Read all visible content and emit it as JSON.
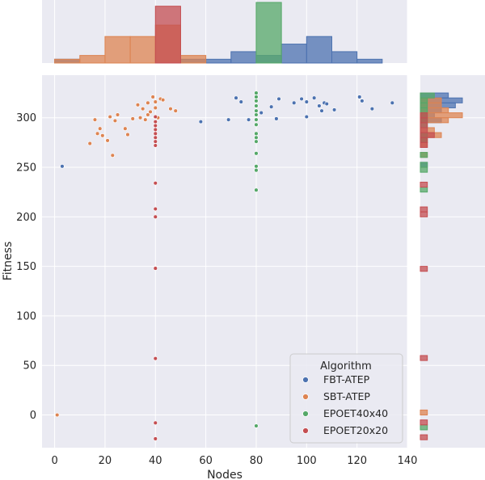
{
  "chart_data": {
    "type": "scatter",
    "title": "",
    "xlabel": "Nodes",
    "ylabel": "Fitness",
    "xlim": [
      -5,
      140
    ],
    "ylim": [
      -33,
      343
    ],
    "xticks": [
      0,
      20,
      40,
      60,
      80,
      100,
      120,
      140
    ],
    "yticks": [
      0,
      50,
      100,
      150,
      200,
      250,
      300
    ],
    "xtick_labels": [
      "0",
      "20",
      "40",
      "60",
      "80",
      "100",
      "120",
      "140"
    ],
    "ytick_labels": [
      "0",
      "50",
      "100",
      "150",
      "200",
      "250",
      "300"
    ],
    "grid": true,
    "legend": {
      "title": "Algorithm",
      "placement": "lower-right"
    },
    "series": [
      {
        "name": "FBT-ATEP",
        "color": "#4c72b0",
        "points": [
          [
            3,
            251
          ],
          [
            58,
            296
          ],
          [
            69,
            298
          ],
          [
            72,
            320
          ],
          [
            74,
            316
          ],
          [
            77,
            298
          ],
          [
            82,
            305
          ],
          [
            86,
            311
          ],
          [
            88,
            299
          ],
          [
            89,
            319
          ],
          [
            95,
            315
          ],
          [
            98,
            319
          ],
          [
            100,
            301
          ],
          [
            100,
            316
          ],
          [
            103,
            320
          ],
          [
            105,
            312
          ],
          [
            106,
            307
          ],
          [
            107,
            315
          ],
          [
            108,
            314
          ],
          [
            111,
            308
          ],
          [
            121,
            321
          ],
          [
            122,
            317
          ],
          [
            126,
            309
          ],
          [
            134,
            315
          ]
        ]
      },
      {
        "name": "SBT-ATEP",
        "color": "#dd8452",
        "points": [
          [
            1,
            0
          ],
          [
            14,
            274
          ],
          [
            16,
            298
          ],
          [
            17,
            284
          ],
          [
            18,
            289
          ],
          [
            19,
            282
          ],
          [
            21,
            277
          ],
          [
            22,
            301
          ],
          [
            23,
            262
          ],
          [
            24,
            297
          ],
          [
            25,
            303
          ],
          [
            28,
            289
          ],
          [
            29,
            283
          ],
          [
            31,
            299
          ],
          [
            33,
            313
          ],
          [
            34,
            300
          ],
          [
            35,
            309
          ],
          [
            36,
            298
          ],
          [
            37,
            315
          ],
          [
            37,
            303
          ],
          [
            38,
            306
          ],
          [
            39,
            321
          ],
          [
            40,
            310
          ],
          [
            40,
            316
          ],
          [
            41,
            300
          ],
          [
            42,
            319
          ],
          [
            43,
            318
          ],
          [
            46,
            309
          ],
          [
            48,
            307
          ]
        ]
      },
      {
        "name": "EPOET40x40",
        "color": "#55a868",
        "points": [
          [
            80,
            325
          ],
          [
            80,
            321
          ],
          [
            80,
            317
          ],
          [
            80,
            312
          ],
          [
            80,
            307
          ],
          [
            80,
            303
          ],
          [
            80,
            298
          ],
          [
            80,
            293
          ],
          [
            80,
            284
          ],
          [
            80,
            280
          ],
          [
            80,
            276
          ],
          [
            80,
            264
          ],
          [
            80,
            251
          ],
          [
            80,
            247
          ],
          [
            80,
            227
          ],
          [
            80,
            -11
          ]
        ]
      },
      {
        "name": "EPOET20x20",
        "color": "#c44e52",
        "points": [
          [
            40,
            301
          ],
          [
            40,
            296
          ],
          [
            40,
            292
          ],
          [
            40,
            288
          ],
          [
            40,
            284
          ],
          [
            40,
            280
          ],
          [
            40,
            276
          ],
          [
            40,
            272
          ],
          [
            40,
            234
          ],
          [
            40,
            208
          ],
          [
            40,
            200
          ],
          [
            40,
            148
          ],
          [
            40,
            57
          ],
          [
            40,
            -8
          ],
          [
            40,
            -24
          ]
        ]
      }
    ],
    "marginal_x": {
      "bins_step": 10,
      "start": 0,
      "series": [
        {
          "name": "FBT-ATEP",
          "counts": [
            1,
            0,
            0,
            0,
            0,
            1,
            1,
            3,
            2,
            5,
            7,
            3,
            1
          ]
        },
        {
          "name": "SBT-ATEP",
          "counts": [
            1,
            2,
            7,
            7,
            10,
            2,
            0,
            0,
            0,
            0,
            0,
            0,
            0
          ]
        },
        {
          "name": "EPOET40x40",
          "counts": [
            0,
            0,
            0,
            0,
            0,
            0,
            0,
            0,
            16,
            0,
            0,
            0,
            0
          ]
        },
        {
          "name": "EPOET20x20",
          "counts": [
            0,
            0,
            0,
            0,
            15,
            0,
            0,
            0,
            0,
            0,
            0,
            0,
            0
          ]
        }
      ]
    },
    "marginal_y": {
      "bins_step": 5,
      "start": -25,
      "series": [
        {
          "name": "FBT-ATEP",
          "counts": [
            [
              250,
              1
            ],
            [
              295,
              3
            ],
            [
              300,
              2
            ],
            [
              305,
              3
            ],
            [
              310,
              5
            ],
            [
              315,
              6
            ],
            [
              320,
              4
            ]
          ]
        },
        {
          "name": "SBT-ATEP",
          "counts": [
            [
              0,
              1
            ],
            [
              260,
              1
            ],
            [
              270,
              1
            ],
            [
              275,
              1
            ],
            [
              280,
              3
            ],
            [
              285,
              2
            ],
            [
              295,
              4
            ],
            [
              300,
              6
            ],
            [
              305,
              4
            ],
            [
              310,
              3
            ],
            [
              315,
              3
            ]
          ]
        },
        {
          "name": "EPOET40x40",
          "counts": [
            [
              -15,
              1
            ],
            [
              225,
              1
            ],
            [
              245,
              1
            ],
            [
              250,
              1
            ],
            [
              260,
              1
            ],
            [
              275,
              1
            ],
            [
              280,
              1
            ],
            [
              290,
              1
            ],
            [
              295,
              1
            ],
            [
              300,
              1
            ],
            [
              305,
              1
            ],
            [
              310,
              1
            ],
            [
              315,
              1
            ],
            [
              320,
              2
            ]
          ]
        },
        {
          "name": "EPOET20x20",
          "counts": [
            [
              -25,
              1
            ],
            [
              -10,
              1
            ],
            [
              55,
              1
            ],
            [
              145,
              1
            ],
            [
              200,
              1
            ],
            [
              205,
              1
            ],
            [
              230,
              1
            ],
            [
              270,
              1
            ],
            [
              275,
              1
            ],
            [
              280,
              2
            ],
            [
              285,
              1
            ],
            [
              290,
              1
            ],
            [
              295,
              1
            ],
            [
              300,
              1
            ]
          ]
        }
      ]
    }
  }
}
